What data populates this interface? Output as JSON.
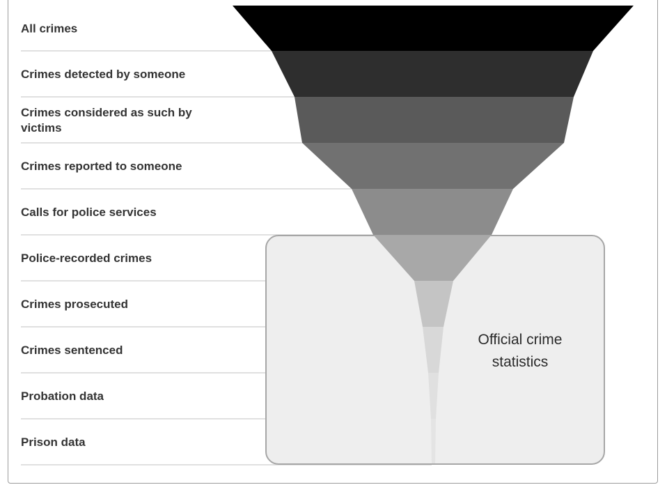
{
  "diagram": {
    "stages": [
      {
        "label_lines": [
          "All crimes"
        ],
        "fill": "#000000"
      },
      {
        "label_lines": [
          "Crimes detected by someone"
        ],
        "fill": "#2e2e2e"
      },
      {
        "label_lines": [
          "Crimes considered as such by",
          "victims"
        ],
        "fill": "#5a5a5a"
      },
      {
        "label_lines": [
          "Crimes reported to someone"
        ],
        "fill": "#717171"
      },
      {
        "label_lines": [
          "Calls for police services"
        ],
        "fill": "#8c8c8c"
      },
      {
        "label_lines": [
          "Police-recorded crimes"
        ],
        "fill": "#a8a8a8"
      },
      {
        "label_lines": [
          "Crimes prosecuted"
        ],
        "fill": "#c4c4c4"
      },
      {
        "label_lines": [
          "Crimes sentenced"
        ],
        "fill": "#d8d8d8"
      },
      {
        "label_lines": [
          "Probation data"
        ],
        "fill": "#e0e0e0"
      },
      {
        "label_lines": [
          "Prison data"
        ],
        "fill": "#e4e4e4"
      }
    ],
    "official_box": {
      "label_lines": [
        "Official crime",
        "statistics"
      ],
      "fill": "#eeeeee",
      "stroke": "#a6a6a6"
    },
    "divider_color": "#d6d6d6"
  }
}
